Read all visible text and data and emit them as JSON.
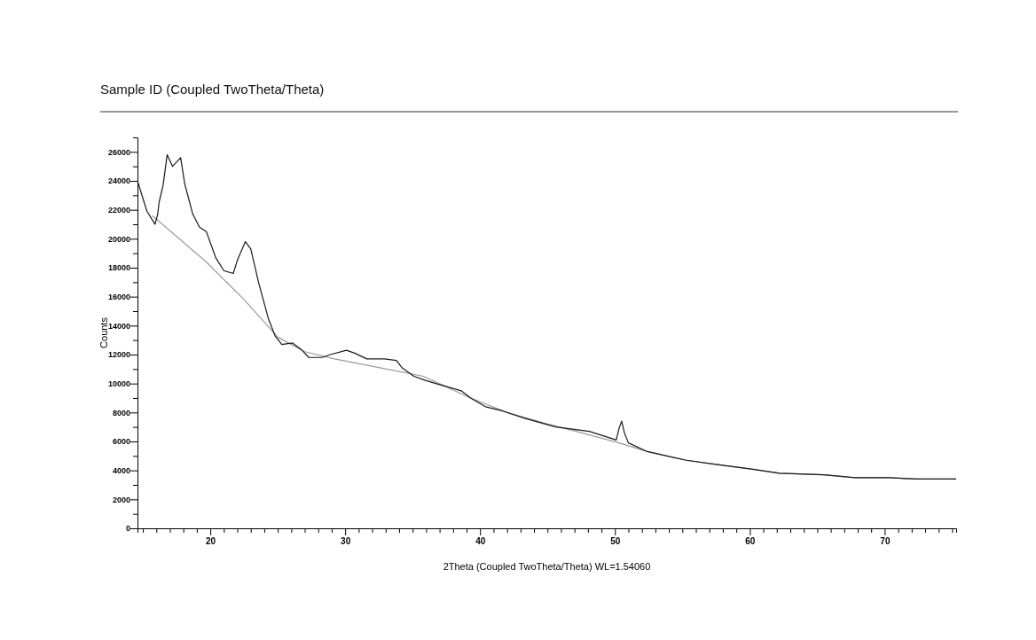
{
  "chart_data": {
    "type": "line",
    "title": "Sample ID (Coupled TwoTheta/Theta)",
    "xlabel": "2Theta (Coupled TwoTheta/Theta) WL=1.54060",
    "ylabel": "Counts",
    "xlim": [
      14.6,
      75.3
    ],
    "ylim": [
      0,
      27000
    ],
    "xticks": [
      {
        "value": 15,
        "label": null
      },
      {
        "value": 16,
        "label": null
      },
      {
        "value": 17,
        "label": null
      },
      {
        "value": 18,
        "label": null
      },
      {
        "value": 19,
        "label": null
      },
      20,
      {
        "value": 21,
        "label": null
      },
      {
        "value": 22,
        "label": null
      },
      {
        "value": 23,
        "label": null
      },
      {
        "value": 24,
        "label": null
      },
      {
        "value": 25,
        "label": null
      },
      {
        "value": 26,
        "label": null
      },
      {
        "value": 27,
        "label": null
      },
      {
        "value": 28,
        "label": null
      },
      {
        "value": 29,
        "label": null
      },
      30,
      {
        "value": 31,
        "label": null
      },
      {
        "value": 32,
        "label": null
      },
      {
        "value": 33,
        "label": null
      },
      {
        "value": 34,
        "label": null
      },
      {
        "value": 35,
        "label": null
      },
      {
        "value": 36,
        "label": null
      },
      {
        "value": 37,
        "label": null
      },
      {
        "value": 38,
        "label": null
      },
      {
        "value": 39,
        "label": null
      },
      40,
      {
        "value": 41,
        "label": null
      },
      {
        "value": 42,
        "label": null
      },
      {
        "value": 43,
        "label": null
      },
      {
        "value": 44,
        "label": null
      },
      {
        "value": 45,
        "label": null
      },
      {
        "value": 46,
        "label": null
      },
      {
        "value": 47,
        "label": null
      },
      {
        "value": 48,
        "label": null
      },
      {
        "value": 49,
        "label": null
      },
      50,
      {
        "value": 51,
        "label": null
      },
      {
        "value": 52,
        "label": null
      },
      {
        "value": 53,
        "label": null
      },
      {
        "value": 54,
        "label": null
      },
      {
        "value": 55,
        "label": null
      },
      {
        "value": 56,
        "label": null
      },
      {
        "value": 57,
        "label": null
      },
      {
        "value": 58,
        "label": null
      },
      {
        "value": 59,
        "label": null
      },
      60,
      {
        "value": 61,
        "label": null
      },
      {
        "value": 62,
        "label": null
      },
      {
        "value": 63,
        "label": null
      },
      {
        "value": 64,
        "label": null
      },
      {
        "value": 65,
        "label": null
      },
      {
        "value": 66,
        "label": null
      },
      {
        "value": 67,
        "label": null
      },
      {
        "value": 68,
        "label": null
      },
      {
        "value": 69,
        "label": null
      },
      70,
      {
        "value": 71,
        "label": null
      },
      {
        "value": 72,
        "label": null
      },
      {
        "value": 73,
        "label": null
      },
      {
        "value": 74,
        "label": null
      },
      {
        "value": 75,
        "label": null
      }
    ],
    "yticks": [
      0,
      {
        "value": 1000,
        "label": null
      },
      2000,
      {
        "value": 3000,
        "label": null
      },
      4000,
      {
        "value": 5000,
        "label": null
      },
      6000,
      {
        "value": 7000,
        "label": null
      },
      8000,
      {
        "value": 9000,
        "label": null
      },
      10000,
      {
        "value": 11000,
        "label": null
      },
      12000,
      {
        "value": 13000,
        "label": null
      },
      14000,
      {
        "value": 15000,
        "label": null
      },
      16000,
      {
        "value": 17000,
        "label": null
      },
      18000,
      {
        "value": 19000,
        "label": null
      },
      20000,
      {
        "value": 21000,
        "label": null
      },
      22000,
      {
        "value": 23000,
        "label": null
      },
      24000,
      {
        "value": 25000,
        "label": null
      },
      26000,
      {
        "value": 27000,
        "label": null
      }
    ],
    "grid": false,
    "marker": "none",
    "line_style": "solid",
    "series": [
      {
        "color": "#1a1a1a",
        "x": [
          14.6,
          14.9,
          15.3,
          15.7,
          15.9,
          16.1,
          16.2,
          16.5,
          16.8,
          17.2,
          17.8,
          18.1,
          18.7,
          19.2,
          19.7,
          20.4,
          21.0,
          21.7,
          22.0,
          22.6,
          23.0,
          23.6,
          24.3,
          24.8,
          25.3,
          26.1,
          26.8,
          27.3,
          28.3,
          28.9,
          30.1,
          30.7,
          31.6,
          32.9,
          33.8,
          34.2,
          35.1,
          36.0,
          37.1,
          38.6,
          39.3,
          40.4,
          41.7,
          43.3,
          45.6,
          48.1,
          50.1,
          50.3,
          50.5,
          50.7,
          51.0,
          52.4,
          55.3,
          57.6,
          60.1,
          62.2,
          65.5,
          67.8,
          70.3,
          72.4,
          75.3
        ],
        "values": [
          24000,
          23100,
          21900,
          21300,
          21000,
          21700,
          22500,
          23700,
          25800,
          25000,
          25600,
          23800,
          21700,
          20800,
          20500,
          18700,
          17800,
          17600,
          18500,
          19800,
          19300,
          16900,
          14500,
          13300,
          12700,
          12800,
          12300,
          11800,
          11800,
          12000,
          12300,
          12100,
          11700,
          11700,
          11600,
          11100,
          10500,
          10200,
          9900,
          9500,
          9000,
          8400,
          8100,
          7600,
          7000,
          6700,
          6100,
          6900,
          7400,
          6600,
          5900,
          5300,
          4700,
          4400,
          4100,
          3800,
          3700,
          3500,
          3500,
          3400,
          3400
        ]
      },
      {
        "color": "#9a9a9a",
        "x": [
          15.7,
          19.7,
          22.5,
          25.0,
          27.0,
          29.2,
          32.5,
          35.8,
          39.3,
          42.0,
          45.0,
          47.5,
          50.3,
          52.4,
          55.3,
          57.6,
          60.1,
          62.2,
          65.5,
          67.8,
          70.3,
          72.4,
          75.3
        ],
        "values": [
          21600,
          18400,
          15800,
          13200,
          12200,
          11700,
          11100,
          10500,
          9000,
          8000,
          7200,
          6600,
          5900,
          5300,
          4700,
          4400,
          4100,
          3800,
          3700,
          3500,
          3500,
          3400,
          3400
        ]
      }
    ]
  }
}
